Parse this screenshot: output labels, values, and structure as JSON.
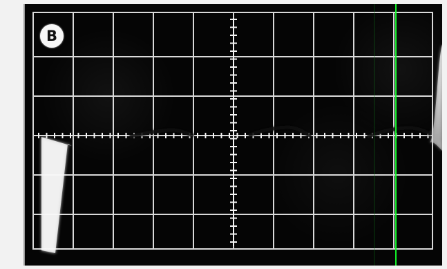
{
  "badge": {
    "label": "B"
  },
  "display": {
    "background_color": "#050505",
    "grid_color": "#f0f0f0",
    "trace_color": "#ffffff",
    "accent_line_color": "#13ff2a"
  }
}
